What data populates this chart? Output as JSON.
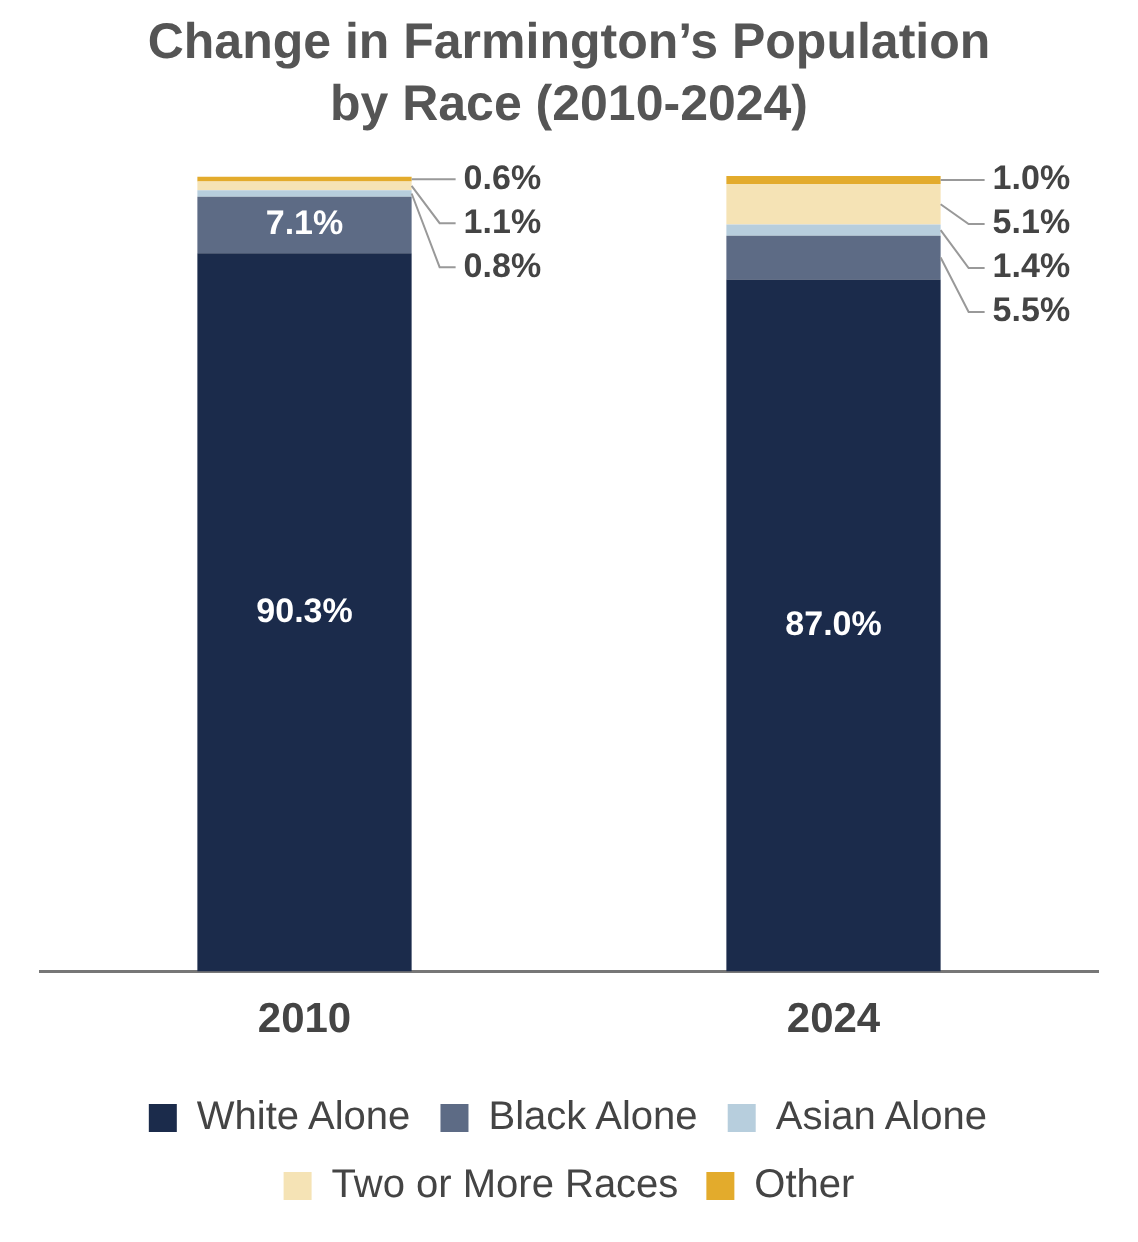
{
  "chart_data": {
    "type": "bar",
    "title": "Change in Farmington’s Population by Race (2010-2024)",
    "categories": [
      "2010",
      "2024"
    ],
    "stacked": true,
    "tick_labels": "x",
    "grid": false,
    "legend": "bottom",
    "series": [
      {
        "name": "White Alone",
        "color": "#1b2b4b",
        "values": [
          90.3,
          87.0
        ],
        "value_labels": [
          "90.3%",
          "87.0%"
        ]
      },
      {
        "name": "Black Alone",
        "color": "#5d6b85",
        "values": [
          7.1,
          5.5
        ],
        "value_labels": [
          "7.1%",
          "5.5%"
        ]
      },
      {
        "name": "Asian Alone",
        "color": "#b7cedd",
        "values": [
          0.8,
          1.4
        ],
        "value_labels": [
          "0.8%",
          "1.4%"
        ]
      },
      {
        "name": "Two or More Races",
        "color": "#f5e3b5",
        "values": [
          1.1,
          5.1
        ],
        "value_labels": [
          "1.1%",
          "5.1%"
        ]
      },
      {
        "name": "Other",
        "color": "#e3ab2c",
        "values": [
          0.6,
          1.0
        ],
        "value_labels": [
          "0.6%",
          "1.0%"
        ]
      }
    ]
  }
}
